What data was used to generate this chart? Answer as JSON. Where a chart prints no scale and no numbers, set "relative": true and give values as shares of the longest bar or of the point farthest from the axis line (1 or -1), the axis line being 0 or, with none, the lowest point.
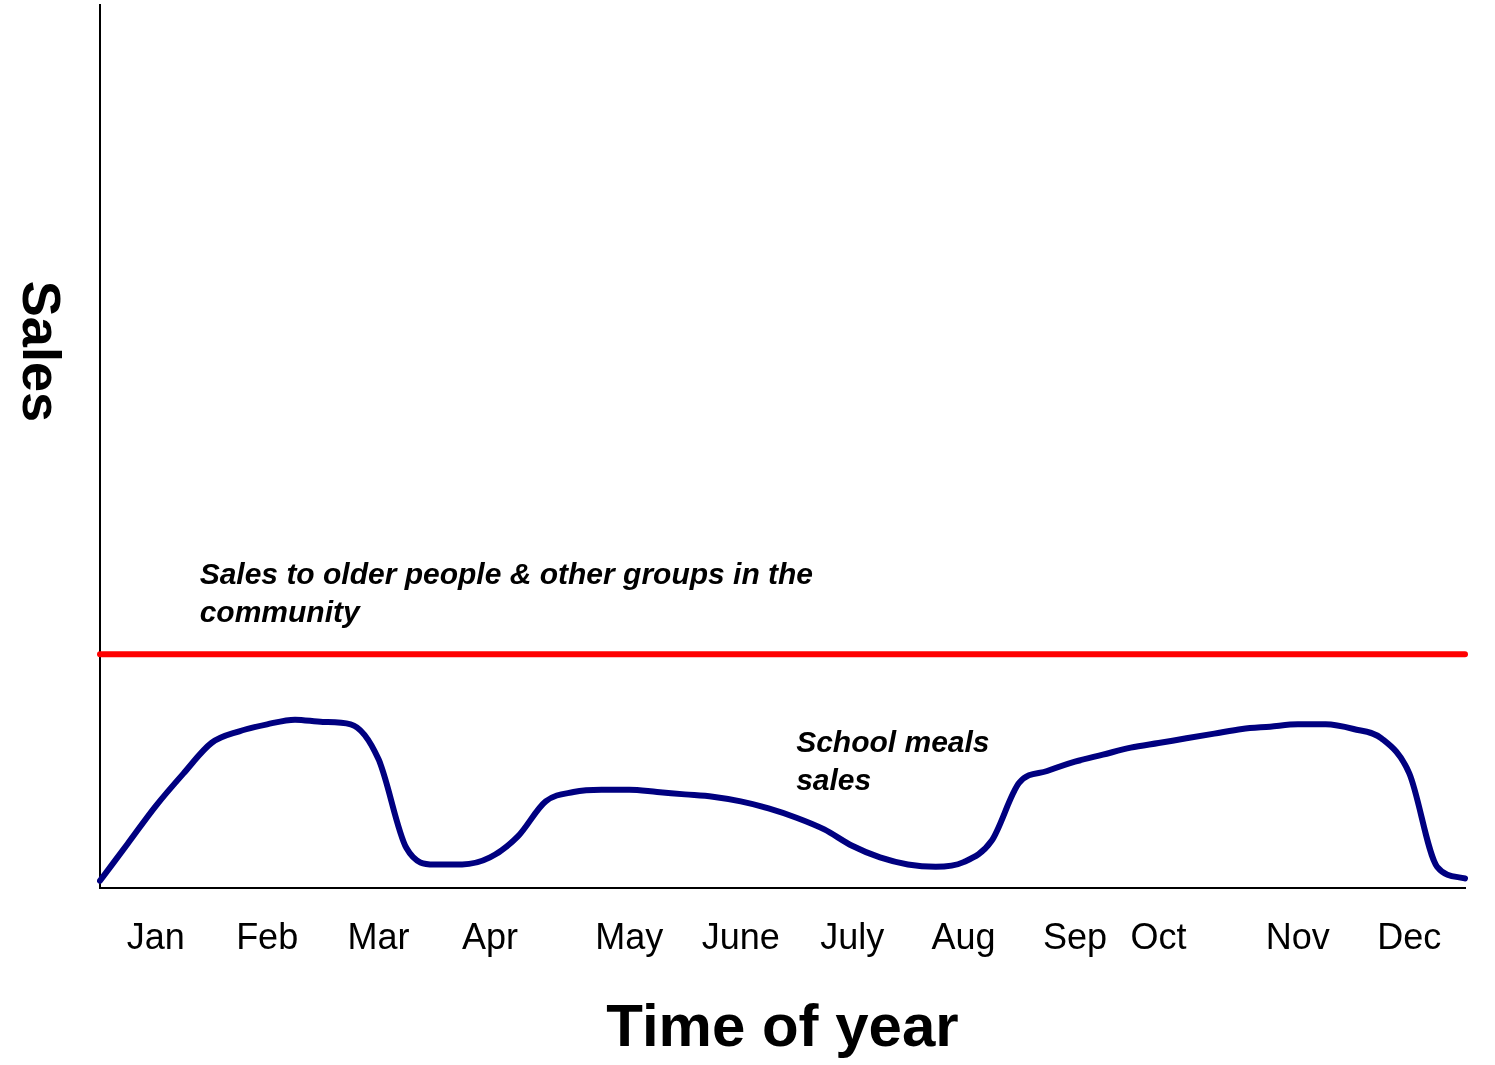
{
  "chart_data": {
    "type": "line",
    "relative": true,
    "xlabel": "Time of year",
    "ylabel": "Sales",
    "categories": [
      null,
      null,
      "Jan",
      null,
      null,
      null,
      "Feb",
      null,
      null,
      null,
      "Mar",
      null,
      null,
      null,
      "Apr",
      null,
      null,
      null,
      null,
      "May",
      null,
      null,
      null,
      "June",
      null,
      null,
      null,
      "July",
      null,
      null,
      null,
      "Aug",
      null,
      null,
      null,
      "Sep",
      null,
      null,
      "Oct",
      null,
      null,
      null,
      null,
      "Nov",
      null,
      null,
      null,
      "Dec",
      null,
      null
    ],
    "tick_labels": "x",
    "grid": false,
    "legend": false,
    "series": [
      {
        "color": "#ff0000",
        "values": [
          1,
          1,
          1,
          1,
          1,
          1,
          1,
          1,
          1,
          1,
          1,
          1,
          1,
          1,
          1,
          1,
          1,
          1,
          1,
          1,
          1,
          1,
          1,
          1,
          1,
          1,
          1,
          1,
          1,
          1,
          1,
          1,
          1,
          1,
          1,
          1,
          1,
          1,
          1,
          1,
          1,
          1,
          1,
          1,
          1,
          1,
          1,
          1,
          1,
          1
        ]
      },
      {
        "color": "#000080",
        "values": [
          0.03,
          0.19,
          0.35,
          0.49,
          0.62,
          0.67,
          0.7,
          0.72,
          0.71,
          0.7,
          0.55,
          0.17,
          0.1,
          0.1,
          0.13,
          0.22,
          0.37,
          0.41,
          0.42,
          0.42,
          0.41,
          0.4,
          0.39,
          0.37,
          0.34,
          0.3,
          0.25,
          0.18,
          0.13,
          0.1,
          0.09,
          0.11,
          0.2,
          0.45,
          0.5,
          0.54,
          0.57,
          0.6,
          0.62,
          0.64,
          0.66,
          0.68,
          0.69,
          0.7,
          0.7,
          0.68,
          0.64,
          0.49,
          0.09,
          0.04
        ]
      }
    ],
    "annotations": [
      "Sales to older people & other groups in the community",
      "School meals sales"
    ]
  }
}
